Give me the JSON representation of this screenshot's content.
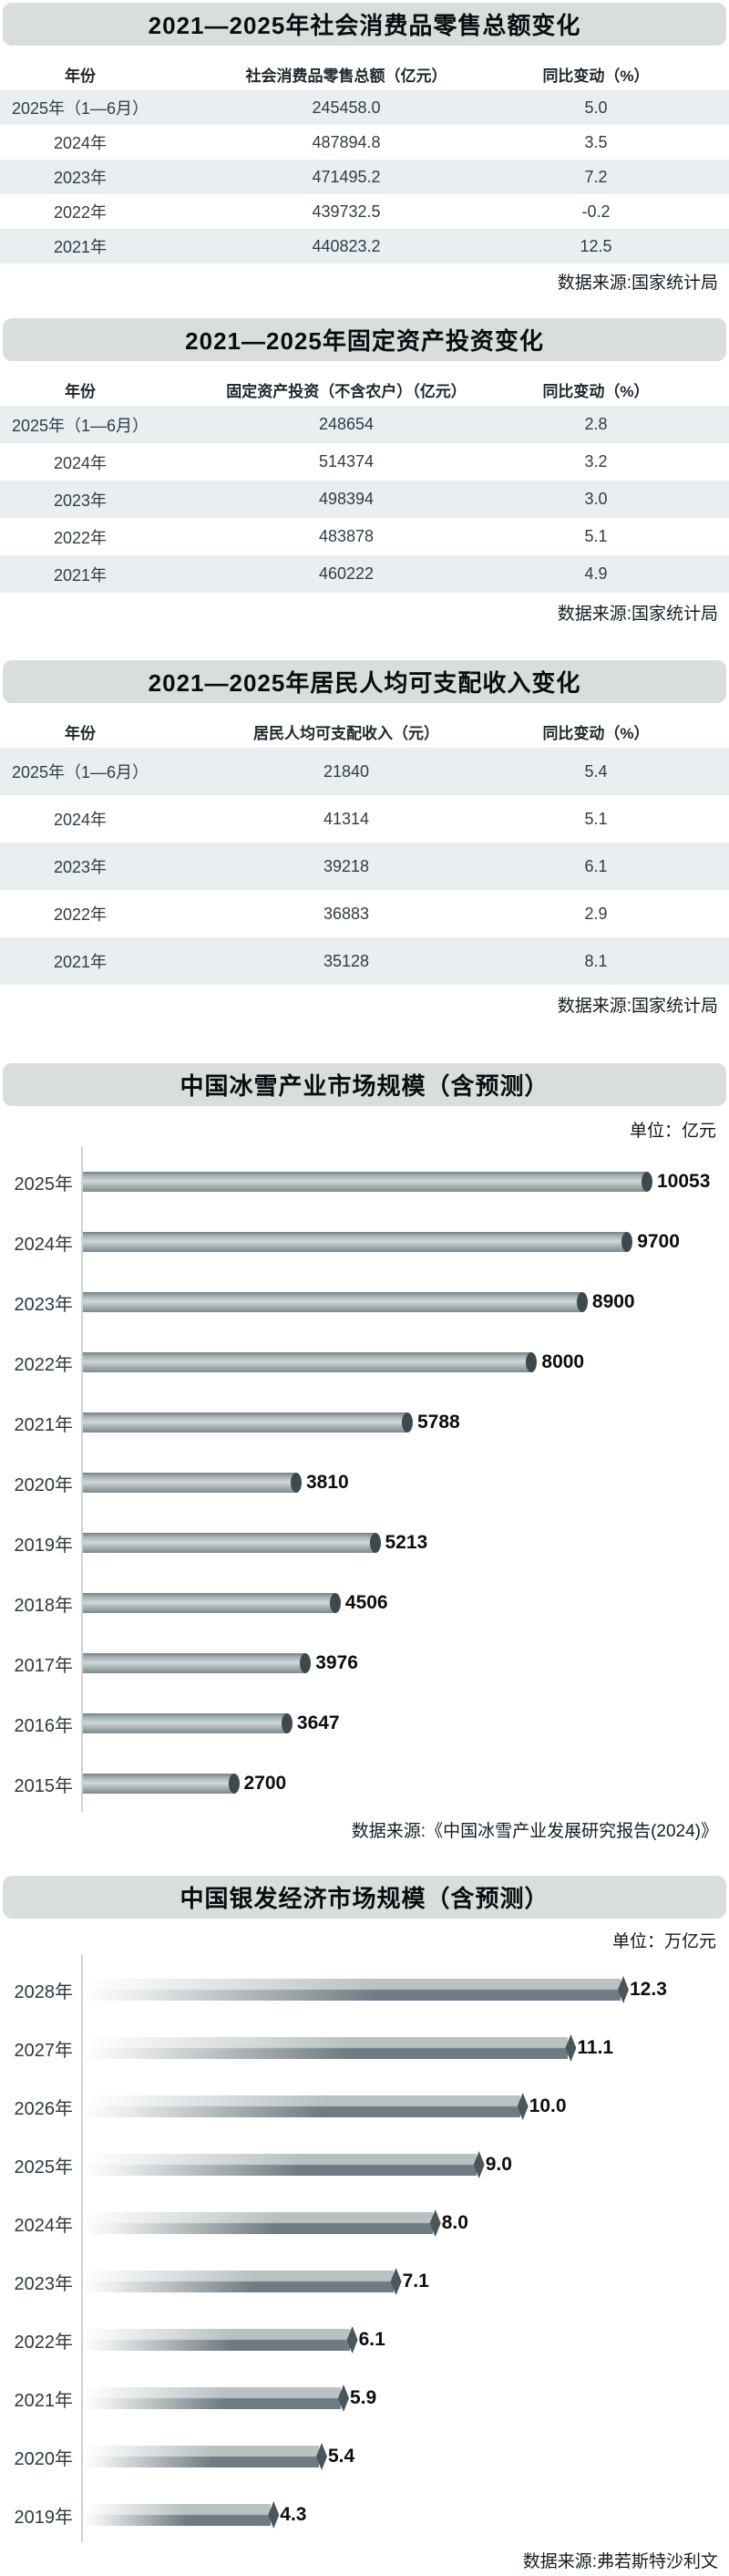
{
  "colors": {
    "title_bg": "#d9dedd",
    "row_shade": "#e9eef0",
    "table_text": "#2e3d46",
    "axis": "#ccd3d6",
    "bar_cap": "#3e494f",
    "pencil_top": "#b9c1c2",
    "pencil_bottom": "#6e7b82",
    "pencil_tip": "#4a555c"
  },
  "chart_data": [
    {
      "type": "table",
      "title": "2021—2025年社会消费品零售总额变化",
      "columns": [
        "年份",
        "社会消费品零售总额（亿元）",
        "同比变动（%）"
      ],
      "rows": [
        [
          "2025年（1—6月）",
          "245458.0",
          "5.0"
        ],
        [
          "2024年",
          "487894.8",
          "3.5"
        ],
        [
          "2023年",
          "471495.2",
          "7.2"
        ],
        [
          "2022年",
          "439732.5",
          "-0.2"
        ],
        [
          "2021年",
          "440823.2",
          "12.5"
        ]
      ],
      "source": "数据来源:国家统计局"
    },
    {
      "type": "table",
      "title": "2021—2025年固定资产投资变化",
      "columns": [
        "年份",
        "固定资产投资（不含农户）（亿元）",
        "同比变动（%）"
      ],
      "rows": [
        [
          "2025年（1—6月）",
          "248654",
          "2.8"
        ],
        [
          "2024年",
          "514374",
          "3.2"
        ],
        [
          "2023年",
          "498394",
          "3.0"
        ],
        [
          "2022年",
          "483878",
          "5.1"
        ],
        [
          "2021年",
          "460222",
          "4.9"
        ]
      ],
      "source": "数据来源:国家统计局"
    },
    {
      "type": "table",
      "title": "2021—2025年居民人均可支配收入变化",
      "columns": [
        "年份",
        "居民人均可支配收入（元）",
        "同比变动（%）"
      ],
      "rows": [
        [
          "2025年（1—6月）",
          "21840",
          "5.4"
        ],
        [
          "2024年",
          "41314",
          "5.1"
        ],
        [
          "2023年",
          "39218",
          "6.1"
        ],
        [
          "2022年",
          "36883",
          "2.9"
        ],
        [
          "2021年",
          "35128",
          "8.1"
        ]
      ],
      "source": "数据来源:国家统计局"
    },
    {
      "type": "bar",
      "orientation": "horizontal",
      "bar_style": "cylinder",
      "title": "中国冰雪产业市场规模（含预测）",
      "unit": "单位：亿元",
      "categories": [
        "2025年",
        "2024年",
        "2023年",
        "2022年",
        "2021年",
        "2020年",
        "2019年",
        "2018年",
        "2017年",
        "2016年",
        "2015年"
      ],
      "values": [
        10053,
        9700,
        8900,
        8000,
        5788,
        3810,
        5213,
        4506,
        3976,
        3647,
        2700
      ],
      "value_labels": [
        "10053",
        "9700",
        "8900",
        "8000",
        "5788",
        "3810",
        "5213",
        "4506",
        "3976",
        "3647",
        "2700"
      ],
      "xlim": [
        0,
        10500
      ],
      "grid": false,
      "legend": false,
      "source": "数据来源:《中国冰雪产业发展研究报告(2024)》"
    },
    {
      "type": "bar",
      "orientation": "horizontal",
      "bar_style": "pencil",
      "title": "中国银发经济市场规模（含预测）",
      "unit": "单位：万亿元",
      "categories": [
        "2028年",
        "2027年",
        "2026年",
        "2025年",
        "2024年",
        "2023年",
        "2022年",
        "2021年",
        "2020年",
        "2019年"
      ],
      "values": [
        12.3,
        11.1,
        10.0,
        9.0,
        8.0,
        7.1,
        6.1,
        5.9,
        5.4,
        4.3
      ],
      "value_labels": [
        "12.3",
        "11.1",
        "10.0",
        "9.0",
        "8.0",
        "7.1",
        "6.1",
        "5.9",
        "5.4",
        "4.3"
      ],
      "xlim": [
        0,
        13
      ],
      "grid": false,
      "legend": false,
      "source": "数据来源:弗若斯特沙利文"
    }
  ]
}
